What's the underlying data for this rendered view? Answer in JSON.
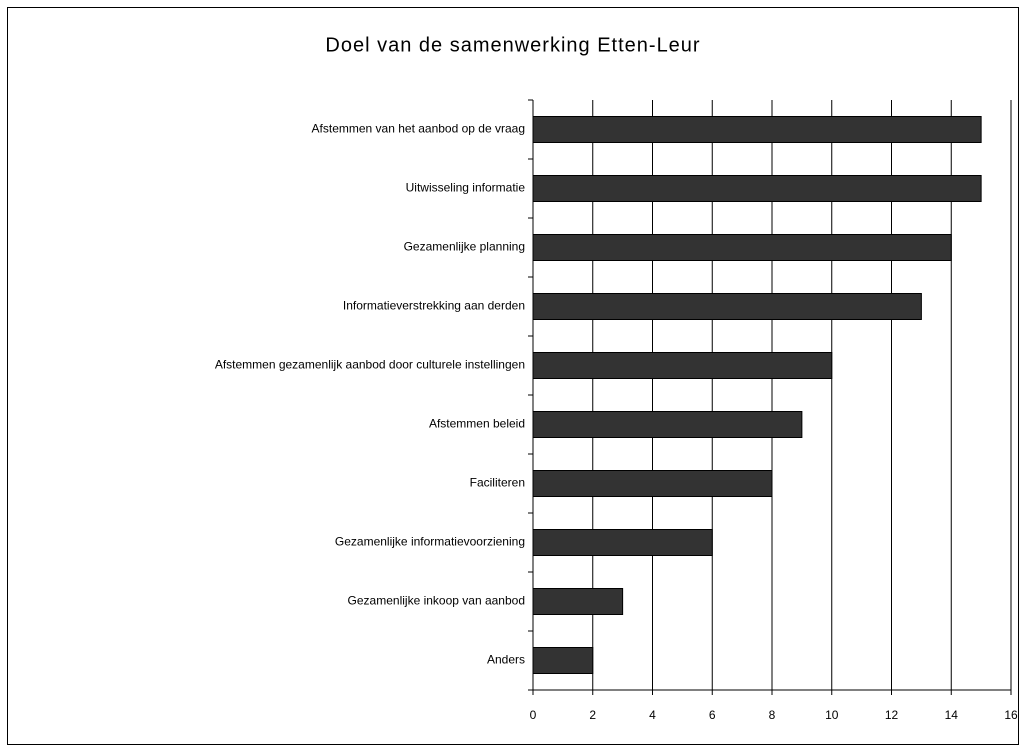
{
  "chart_data": {
    "type": "bar",
    "orientation": "horizontal",
    "title": "Doel van de samenwerking Etten-Leur",
    "categories": [
      "Afstemmen van het aanbod op de vraag",
      "Uitwisseling informatie",
      "Gezamenlijke planning",
      "Informatieverstrekking aan derden",
      "Afstemmen gezamenlijk aanbod door culturele instellingen",
      "Afstemmen beleid",
      "Faciliteren",
      "Gezamenlijke informatievoorziening",
      "Gezamenlijke inkoop van aanbod",
      "Anders"
    ],
    "values": [
      15,
      15,
      14,
      13,
      10,
      9,
      8,
      6,
      3,
      2
    ],
    "color": "#333333",
    "xlim": [
      0,
      16
    ],
    "xticks": [
      0,
      2,
      4,
      6,
      8,
      10,
      12,
      14,
      16
    ],
    "grid": true
  }
}
